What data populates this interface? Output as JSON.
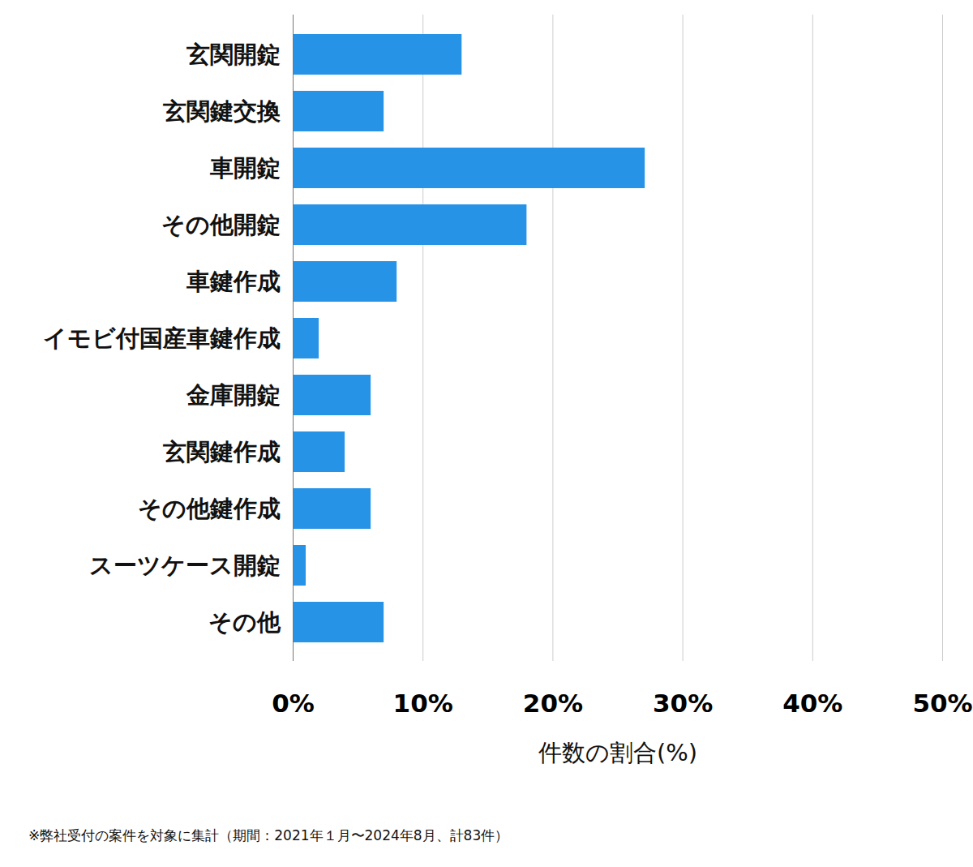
{
  "chart_data": {
    "type": "bar",
    "orientation": "horizontal",
    "categories": [
      "玄関開錠",
      "玄関鍵交換",
      "車開錠",
      "その他開錠",
      "車鍵作成",
      "イモビ付国産車鍵作成",
      "金庫開錠",
      "玄関鍵作成",
      "その他鍵作成",
      "スーツケース開錠",
      "その他"
    ],
    "values": [
      13.0,
      7.0,
      27.1,
      18.0,
      8.0,
      2.0,
      6.0,
      4.0,
      6.0,
      1.0,
      7.0
    ],
    "color": "#2793e6",
    "x_label": "件数の割合(%)",
    "xlim": [
      0,
      50
    ],
    "xticks": [
      {
        "value": 0,
        "label": "0%"
      },
      {
        "value": 10,
        "label": "10%"
      },
      {
        "value": 20,
        "label": "20%"
      },
      {
        "value": 30,
        "label": "30%"
      },
      {
        "value": 40,
        "label": "40%"
      },
      {
        "value": 50,
        "label": "50%"
      }
    ],
    "grid": true,
    "caption": "※弊社受付の案件を対象に集計（期間：2021年１月〜2024年8月、計83件）"
  }
}
